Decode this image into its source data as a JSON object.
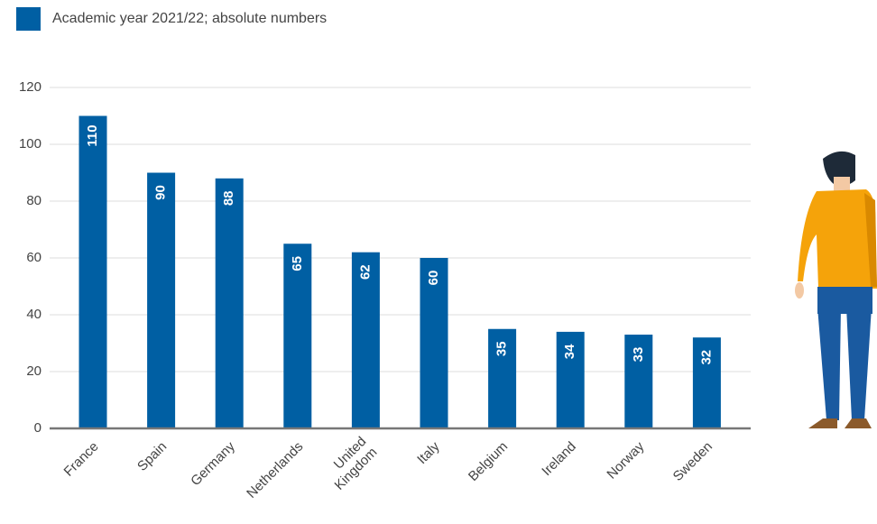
{
  "chart_data": {
    "type": "bar",
    "legend_label": "Academic year 2021/22; absolute numbers",
    "categories": [
      "France",
      "Spain",
      "Germany",
      "Netherlands",
      "United Kingdom",
      "Italy",
      "Belgium",
      "Ireland",
      "Norway",
      "Sweden"
    ],
    "values": [
      110,
      90,
      88,
      65,
      62,
      60,
      35,
      34,
      33,
      32
    ],
    "color": "#005fa3",
    "ylim": [
      0,
      120
    ],
    "yticks": [
      0,
      20,
      40,
      60,
      80,
      100,
      120
    ],
    "grid": true
  }
}
